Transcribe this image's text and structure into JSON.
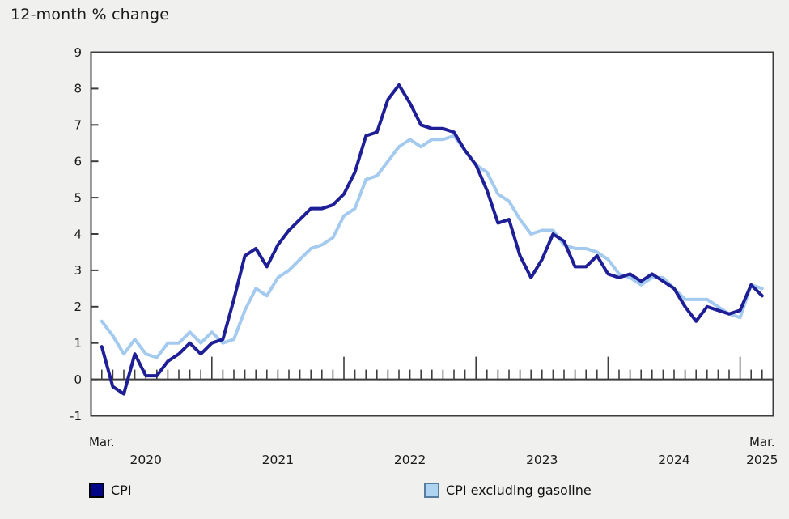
{
  "title": "12-month % change",
  "y_axis": {
    "ticks": [
      "9",
      "8",
      "7",
      "6",
      "5",
      "4",
      "3",
      "2",
      "1",
      "0",
      "-1"
    ]
  },
  "x_axis": {
    "left_label": "Mar.",
    "right_label": "Mar.",
    "year_labels": [
      "2020",
      "2021",
      "2022",
      "2023",
      "2024",
      "2025"
    ]
  },
  "legend": {
    "items": [
      {
        "label": "CPI",
        "swatch_fill": "#000487",
        "swatch_border": "#000000"
      },
      {
        "label": "CPI excluding gasoline",
        "swatch_fill": "#aed4f2",
        "swatch_border": "#567d9e"
      }
    ]
  },
  "colors": {
    "background": "#f0f0ee",
    "plot_background": "#ffffff",
    "axis": "#3d3d3d",
    "text": "#1a1a1a",
    "cpi_line": "#1e1e96",
    "cpi_ex_gasoline_line": "#a4cbef"
  },
  "chart_data": {
    "type": "line",
    "title": "12-month % change",
    "frequency": "monthly",
    "x_start": "2020-03",
    "x_end": "2025-03",
    "ylim": [
      -1,
      9
    ],
    "y_tick_step": 1,
    "grid": false,
    "legend_position": "bottom",
    "months": [
      "2020-03",
      "2020-04",
      "2020-05",
      "2020-06",
      "2020-07",
      "2020-08",
      "2020-09",
      "2020-10",
      "2020-11",
      "2020-12",
      "2021-01",
      "2021-02",
      "2021-03",
      "2021-04",
      "2021-05",
      "2021-06",
      "2021-07",
      "2021-08",
      "2021-09",
      "2021-10",
      "2021-11",
      "2021-12",
      "2022-01",
      "2022-02",
      "2022-03",
      "2022-04",
      "2022-05",
      "2022-06",
      "2022-07",
      "2022-08",
      "2022-09",
      "2022-10",
      "2022-11",
      "2022-12",
      "2023-01",
      "2023-02",
      "2023-03",
      "2023-04",
      "2023-05",
      "2023-06",
      "2023-07",
      "2023-08",
      "2023-09",
      "2023-10",
      "2023-11",
      "2023-12",
      "2024-01",
      "2024-02",
      "2024-03",
      "2024-04",
      "2024-05",
      "2024-06",
      "2024-07",
      "2024-08",
      "2024-09",
      "2024-10",
      "2024-11",
      "2024-12",
      "2025-01",
      "2025-02",
      "2025-03"
    ],
    "series": [
      {
        "name": "CPI",
        "color": "#1e1e96",
        "values": [
          0.9,
          -0.2,
          -0.4,
          0.7,
          0.1,
          0.1,
          0.5,
          0.7,
          1.0,
          0.7,
          1.0,
          1.1,
          2.2,
          3.4,
          3.6,
          3.1,
          3.7,
          4.1,
          4.4,
          4.7,
          4.7,
          4.8,
          5.1,
          5.7,
          6.7,
          6.8,
          7.7,
          8.1,
          7.6,
          7.0,
          6.9,
          6.9,
          6.8,
          6.3,
          5.9,
          5.2,
          4.3,
          4.4,
          3.4,
          2.8,
          3.3,
          4.0,
          3.8,
          3.1,
          3.1,
          3.4,
          2.9,
          2.8,
          2.9,
          2.7,
          2.9,
          2.7,
          2.5,
          2.0,
          1.6,
          2.0,
          1.9,
          1.8,
          1.9,
          2.6,
          2.3
        ]
      },
      {
        "name": "CPI excluding gasoline",
        "color": "#a4cbef",
        "values": [
          1.6,
          1.2,
          0.7,
          1.1,
          0.7,
          0.6,
          1.0,
          1.0,
          1.3,
          1.0,
          1.3,
          1.0,
          1.1,
          1.9,
          2.5,
          2.3,
          2.8,
          3.0,
          3.3,
          3.6,
          3.7,
          3.9,
          4.5,
          4.7,
          5.5,
          5.6,
          6.0,
          6.4,
          6.6,
          6.4,
          6.6,
          6.6,
          6.7,
          6.3,
          5.9,
          5.7,
          5.1,
          4.9,
          4.4,
          4.0,
          4.1,
          4.1,
          3.7,
          3.6,
          3.6,
          3.5,
          3.3,
          2.9,
          2.8,
          2.6,
          2.8,
          2.8,
          2.5,
          2.2,
          2.2,
          2.2,
          2.0,
          1.8,
          1.7,
          2.6,
          2.5
        ]
      }
    ]
  }
}
